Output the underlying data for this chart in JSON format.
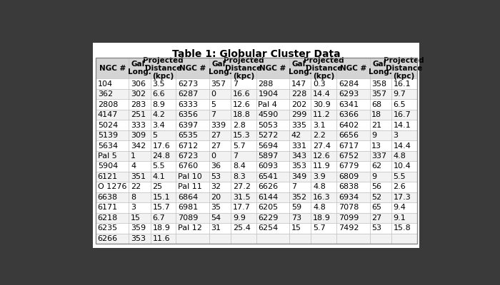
{
  "title": "Table 1: Globular Cluster Data",
  "col1": [
    [
      "104",
      "306",
      "3.5"
    ],
    [
      "362",
      "302",
      "6.6"
    ],
    [
      "2808",
      "283",
      "8.9"
    ],
    [
      "4147",
      "251",
      "4.2"
    ],
    [
      "5024",
      "333",
      "3.4"
    ],
    [
      "5139",
      "309",
      "5"
    ],
    [
      "5634",
      "342",
      "17.6"
    ],
    [
      "Pal 5",
      "1",
      "24.8"
    ],
    [
      "5904",
      "4",
      "5.5"
    ],
    [
      "6121",
      "351",
      "4.1"
    ],
    [
      "O 1276",
      "22",
      "25"
    ],
    [
      "6638",
      "8",
      "15.1"
    ],
    [
      "6171",
      "3",
      "15.7"
    ],
    [
      "6218",
      "15",
      "6.7"
    ],
    [
      "6235",
      "359",
      "18.9"
    ],
    [
      "6266",
      "353",
      "11.6"
    ]
  ],
  "col2": [
    [
      "6273",
      "357",
      "7"
    ],
    [
      "6287",
      "0",
      "16.6"
    ],
    [
      "6333",
      "5",
      "12.6"
    ],
    [
      "6356",
      "7",
      "18.8"
    ],
    [
      "6397",
      "339",
      "2.8"
    ],
    [
      "6535",
      "27",
      "15.3"
    ],
    [
      "6712",
      "27",
      "5.7"
    ],
    [
      "6723",
      "0",
      "7"
    ],
    [
      "6760",
      "36",
      "8.4"
    ],
    [
      "Pal 10",
      "53",
      "8.3"
    ],
    [
      "Pal 11",
      "32",
      "27.2"
    ],
    [
      "6864",
      "20",
      "31.5"
    ],
    [
      "6981",
      "35",
      "17.7"
    ],
    [
      "7089",
      "54",
      "9.9"
    ],
    [
      "Pal 12",
      "31",
      "25.4"
    ],
    [
      "",
      "",
      ""
    ]
  ],
  "col3": [
    [
      "288",
      "147",
      "0.3"
    ],
    [
      "1904",
      "228",
      "14.4"
    ],
    [
      "Pal 4",
      "202",
      "30.9"
    ],
    [
      "4590",
      "299",
      "11.2"
    ],
    [
      "5053",
      "335",
      "3.1"
    ],
    [
      "5272",
      "42",
      "2.2"
    ],
    [
      "5694",
      "331",
      "27.4"
    ],
    [
      "5897",
      "343",
      "12.6"
    ],
    [
      "6093",
      "353",
      "11.9"
    ],
    [
      "6541",
      "349",
      "3.9"
    ],
    [
      "6626",
      "7",
      "4.8"
    ],
    [
      "6144",
      "352",
      "16.3"
    ],
    [
      "6205",
      "59",
      "4.8"
    ],
    [
      "6229",
      "73",
      "18.9"
    ],
    [
      "6254",
      "15",
      "5.7"
    ],
    [
      "",
      "",
      ""
    ]
  ],
  "col4": [
    [
      "6284",
      "358",
      "16.1"
    ],
    [
      "6293",
      "357",
      "9.7"
    ],
    [
      "6341",
      "68",
      "6.5"
    ],
    [
      "6366",
      "18",
      "16.7"
    ],
    [
      "6402",
      "21",
      "14.1"
    ],
    [
      "6656",
      "9",
      "3"
    ],
    [
      "6717",
      "13",
      "14.4"
    ],
    [
      "6752",
      "337",
      "4.8"
    ],
    [
      "6779",
      "62",
      "10.4"
    ],
    [
      "6809",
      "9",
      "5.5"
    ],
    [
      "6838",
      "56",
      "2.6"
    ],
    [
      "6934",
      "52",
      "17.3"
    ],
    [
      "7078",
      "65",
      "9.4"
    ],
    [
      "7099",
      "27",
      "9.1"
    ],
    [
      "7492",
      "53",
      "15.8"
    ],
    [
      "",
      "",
      ""
    ]
  ],
  "bg_white": "#ffffff",
  "bg_light": "#f2f2f2",
  "header_bg": "#d4d4d4",
  "outer_bg": "#3a3a3a",
  "border_color": "#bbbbbb",
  "title_fontsize": 10,
  "header_fontsize": 7.5,
  "cell_fontsize": 8.0
}
